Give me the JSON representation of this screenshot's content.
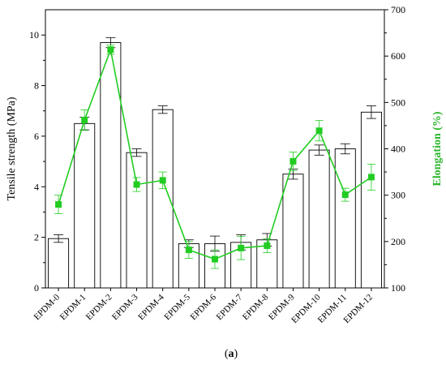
{
  "chart_data": {
    "type": "bar",
    "panel_label": "(a)",
    "panel_letter": "a",
    "categories": [
      "EPDM-0",
      "EPDM-1",
      "EPDM-2",
      "EPDM-3",
      "EPDM-4",
      "EPDM-5",
      "EPDM-6",
      "EPDM-7",
      "EPDM-8",
      "EPDM-9",
      "EPDM-10",
      "EPDM-11",
      "EPDM-12"
    ],
    "left_axis": {
      "label": "Tensile strength (MPa)",
      "ylim": [
        0,
        11
      ],
      "ticks": [
        0,
        2,
        4,
        6,
        8,
        10
      ],
      "color": "#000000"
    },
    "right_axis": {
      "label": "Elongation (%)",
      "ylim": [
        100,
        700
      ],
      "ticks": [
        100,
        200,
        300,
        400,
        500,
        600,
        700
      ],
      "color": "#2db52d"
    },
    "series": [
      {
        "chart_type": "bar",
        "axis": "left",
        "values": [
          1.95,
          6.5,
          9.7,
          5.35,
          7.05,
          1.75,
          1.75,
          1.8,
          1.9,
          4.5,
          5.45,
          5.5,
          6.95
        ],
        "errors": [
          0.15,
          0.25,
          0.2,
          0.15,
          0.15,
          0.15,
          0.3,
          0.3,
          0.25,
          0.2,
          0.2,
          0.2,
          0.25
        ],
        "color": "#000000"
      },
      {
        "chart_type": "line",
        "axis": "right",
        "values": [
          280,
          462,
          614,
          323,
          332,
          182,
          162,
          186,
          191,
          373,
          439,
          301,
          339
        ],
        "errors": [
          20,
          22,
          10,
          15,
          18,
          18,
          20,
          25,
          15,
          20,
          22,
          14,
          28
        ],
        "color": "#22cc22"
      }
    ]
  }
}
